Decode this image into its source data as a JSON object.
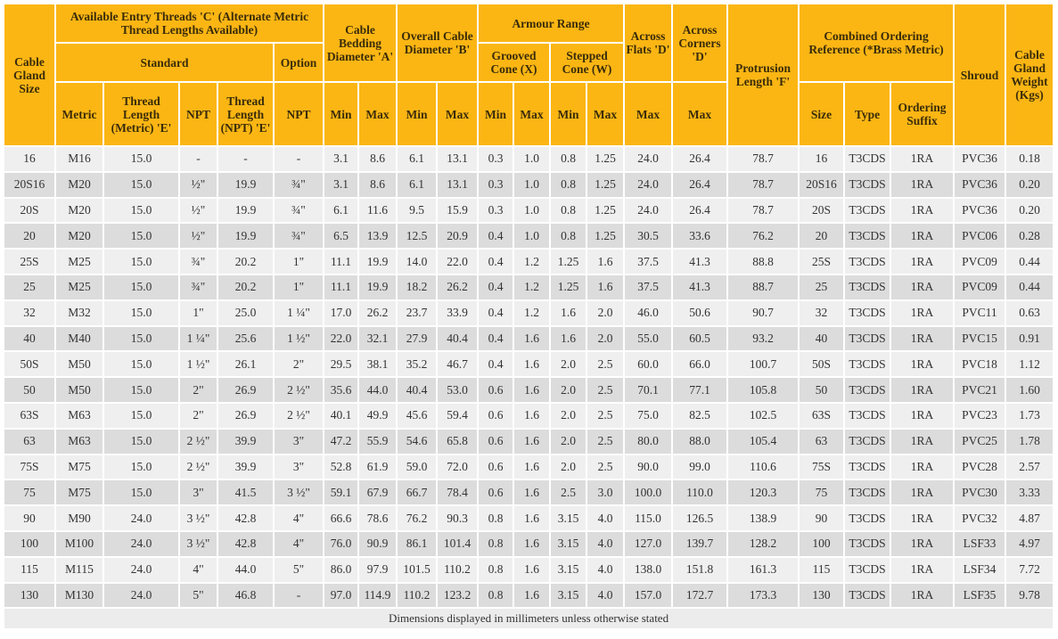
{
  "header": {
    "gland_size": "Cable Gland Size",
    "entry_threads": "Available Entry Threads 'C' (Alternate Metric Thread Lengths Available)",
    "standard": "Standard",
    "option": "Option",
    "metric": "Metric",
    "thread_length_metric": "Thread Length (Metric) 'E'",
    "npt": "NPT",
    "thread_length_npt": "Thread Length (NPT) 'E'",
    "option_npt": "NPT",
    "bedding": "Cable Bedding Diameter 'A'",
    "overall": "Overall Cable Diameter 'B'",
    "armour": "Armour Range",
    "grooved": "Grooved Cone (X)",
    "stepped": "Stepped Cone (W)",
    "min": "Min",
    "max": "Max",
    "across_flats": "Across Flats 'D'",
    "across_corners": "Across Corners 'D'",
    "protrusion": "Protrusion Length 'F'",
    "ordering": "Combined Ordering Reference (*Brass Metric)",
    "size": "Size",
    "type": "Type",
    "suffix": "Ordering Suffix",
    "shroud": "Shroud",
    "weight": "Cable Gland Weight (Kgs)"
  },
  "rows": [
    [
      "16",
      "M16",
      "15.0",
      "-",
      "-",
      "-",
      "3.1",
      "8.6",
      "6.1",
      "13.1",
      "0.3",
      "1.0",
      "0.8",
      "1.25",
      "24.0",
      "26.4",
      "78.7",
      "16",
      "T3CDS",
      "1RA",
      "PVC36",
      "0.18"
    ],
    [
      "20S16",
      "M20",
      "15.0",
      "½\"",
      "19.9",
      "¾\"",
      "3.1",
      "8.6",
      "6.1",
      "13.1",
      "0.3",
      "1.0",
      "0.8",
      "1.25",
      "24.0",
      "26.4",
      "78.7",
      "20S16",
      "T3CDS",
      "1RA",
      "PVC36",
      "0.20"
    ],
    [
      "20S",
      "M20",
      "15.0",
      "½\"",
      "19.9",
      "¾\"",
      "6.1",
      "11.6",
      "9.5",
      "15.9",
      "0.3",
      "1.0",
      "0.8",
      "1.25",
      "24.0",
      "26.4",
      "78.7",
      "20S",
      "T3CDS",
      "1RA",
      "PVC36",
      "0.20"
    ],
    [
      "20",
      "M20",
      "15.0",
      "½\"",
      "19.9",
      "¾\"",
      "6.5",
      "13.9",
      "12.5",
      "20.9",
      "0.4",
      "1.0",
      "0.8",
      "1.25",
      "30.5",
      "33.6",
      "76.2",
      "20",
      "T3CDS",
      "1RA",
      "PVC06",
      "0.28"
    ],
    [
      "25S",
      "M25",
      "15.0",
      "¾\"",
      "20.2",
      "1\"",
      "11.1",
      "19.9",
      "14.0",
      "22.0",
      "0.4",
      "1.2",
      "1.25",
      "1.6",
      "37.5",
      "41.3",
      "88.8",
      "25S",
      "T3CDS",
      "1RA",
      "PVC09",
      "0.44"
    ],
    [
      "25",
      "M25",
      "15.0",
      "¾\"",
      "20.2",
      "1\"",
      "11.1",
      "19.9",
      "18.2",
      "26.2",
      "0.4",
      "1.2",
      "1.25",
      "1.6",
      "37.5",
      "41.3",
      "88.7",
      "25",
      "T3CDS",
      "1RA",
      "PVC09",
      "0.44"
    ],
    [
      "32",
      "M32",
      "15.0",
      "1\"",
      "25.0",
      "1 ¼\"",
      "17.0",
      "26.2",
      "23.7",
      "33.9",
      "0.4",
      "1.2",
      "1.6",
      "2.0",
      "46.0",
      "50.6",
      "90.7",
      "32",
      "T3CDS",
      "1RA",
      "PVC11",
      "0.63"
    ],
    [
      "40",
      "M40",
      "15.0",
      "1 ¼\"",
      "25.6",
      "1 ½\"",
      "22.0",
      "32.1",
      "27.9",
      "40.4",
      "0.4",
      "1.6",
      "1.6",
      "2.0",
      "55.0",
      "60.5",
      "93.2",
      "40",
      "T3CDS",
      "1RA",
      "PVC15",
      "0.91"
    ],
    [
      "50S",
      "M50",
      "15.0",
      "1 ½\"",
      "26.1",
      "2\"",
      "29.5",
      "38.1",
      "35.2",
      "46.7",
      "0.4",
      "1.6",
      "2.0",
      "2.5",
      "60.0",
      "66.0",
      "100.7",
      "50S",
      "T3CDS",
      "1RA",
      "PVC18",
      "1.12"
    ],
    [
      "50",
      "M50",
      "15.0",
      "2\"",
      "26.9",
      "2 ½\"",
      "35.6",
      "44.0",
      "40.4",
      "53.0",
      "0.6",
      "1.6",
      "2.0",
      "2.5",
      "70.1",
      "77.1",
      "105.8",
      "50",
      "T3CDS",
      "1RA",
      "PVC21",
      "1.60"
    ],
    [
      "63S",
      "M63",
      "15.0",
      "2\"",
      "26.9",
      "2 ½\"",
      "40.1",
      "49.9",
      "45.6",
      "59.4",
      "0.6",
      "1.6",
      "2.0",
      "2.5",
      "75.0",
      "82.5",
      "102.5",
      "63S",
      "T3CDS",
      "1RA",
      "PVC23",
      "1.73"
    ],
    [
      "63",
      "M63",
      "15.0",
      "2 ½\"",
      "39.9",
      "3\"",
      "47.2",
      "55.9",
      "54.6",
      "65.8",
      "0.6",
      "1.6",
      "2.0",
      "2.5",
      "80.0",
      "88.0",
      "105.4",
      "63",
      "T3CDS",
      "1RA",
      "PVC25",
      "1.78"
    ],
    [
      "75S",
      "M75",
      "15.0",
      "2 ½\"",
      "39.9",
      "3\"",
      "52.8",
      "61.9",
      "59.0",
      "72.0",
      "0.6",
      "1.6",
      "2.0",
      "2.5",
      "90.0",
      "99.0",
      "110.6",
      "75S",
      "T3CDS",
      "1RA",
      "PVC28",
      "2.57"
    ],
    [
      "75",
      "M75",
      "15.0",
      "3\"",
      "41.5",
      "3 ½\"",
      "59.1",
      "67.9",
      "66.7",
      "78.4",
      "0.6",
      "1.6",
      "2.5",
      "3.0",
      "100.0",
      "110.0",
      "120.3",
      "75",
      "T3CDS",
      "1RA",
      "PVC30",
      "3.33"
    ],
    [
      "90",
      "M90",
      "24.0",
      "3 ½\"",
      "42.8",
      "4\"",
      "66.6",
      "78.6",
      "76.2",
      "90.3",
      "0.8",
      "1.6",
      "3.15",
      "4.0",
      "115.0",
      "126.5",
      "138.9",
      "90",
      "T3CDS",
      "1RA",
      "PVC32",
      "4.87"
    ],
    [
      "100",
      "M100",
      "24.0",
      "3 ½\"",
      "42.8",
      "4\"",
      "76.0",
      "90.9",
      "86.1",
      "101.4",
      "0.8",
      "1.6",
      "3.15",
      "4.0",
      "127.0",
      "139.7",
      "128.2",
      "100",
      "T3CDS",
      "1RA",
      "LSF33",
      "4.97"
    ],
    [
      "115",
      "M115",
      "24.0",
      "4\"",
      "44.0",
      "5\"",
      "86.0",
      "97.9",
      "101.5",
      "110.2",
      "0.8",
      "1.6",
      "3.15",
      "4.0",
      "138.0",
      "151.8",
      "161.3",
      "115",
      "T3CDS",
      "1RA",
      "LSF34",
      "7.72"
    ],
    [
      "130",
      "M130",
      "24.0",
      "5\"",
      "46.8",
      "-",
      "97.0",
      "114.9",
      "110.2",
      "123.2",
      "0.8",
      "1.6",
      "3.15",
      "4.0",
      "157.0",
      "172.7",
      "173.3",
      "130",
      "T3CDS",
      "1RA",
      "LSF35",
      "9.78"
    ]
  ],
  "footer": "Dimensions displayed in millimeters unless otherwise stated",
  "colors": {
    "header": "#fbb614",
    "row_light": "#efefef",
    "row_dark": "#dcdcdd"
  }
}
